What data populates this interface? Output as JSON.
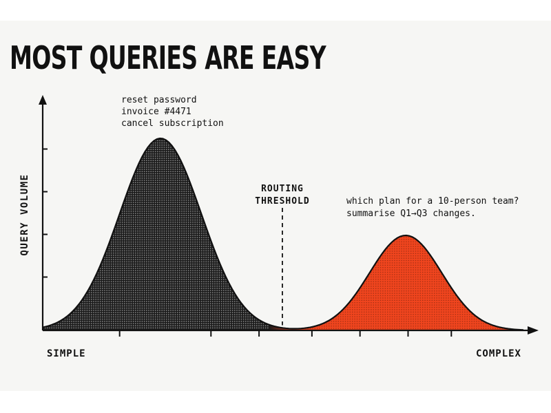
{
  "title": "MOST QUERIES ARE EASY",
  "colors": {
    "simple_fill": "#1a1a1a",
    "complex_fill": "#f0451e",
    "axis": "#111111",
    "background": "#f6f6f4"
  },
  "chart_data": {
    "type": "area",
    "title": "MOST QUERIES ARE EASY",
    "ylabel": "QUERY VOLUME",
    "x_tick_labels": [
      "SIMPLE",
      "COMPLEX"
    ],
    "threshold": {
      "label_lines": [
        "ROUTING",
        "THRESHOLD"
      ],
      "x_fraction": 0.5
    },
    "series": [
      {
        "peak_x_fraction": 0.245,
        "peak_height_fraction": 0.93,
        "color": "#1a1a1a",
        "annotations": [
          "reset password",
          "invoice #4471",
          "cancel subscription"
        ]
      },
      {
        "peak_x_fraction": 0.755,
        "peak_height_fraction": 0.46,
        "color": "#f0451e",
        "annotations": [
          "which plan for a 10-person team?",
          "summarise Q1→Q3 changes."
        ]
      }
    ],
    "grid": false,
    "legend": "none"
  }
}
